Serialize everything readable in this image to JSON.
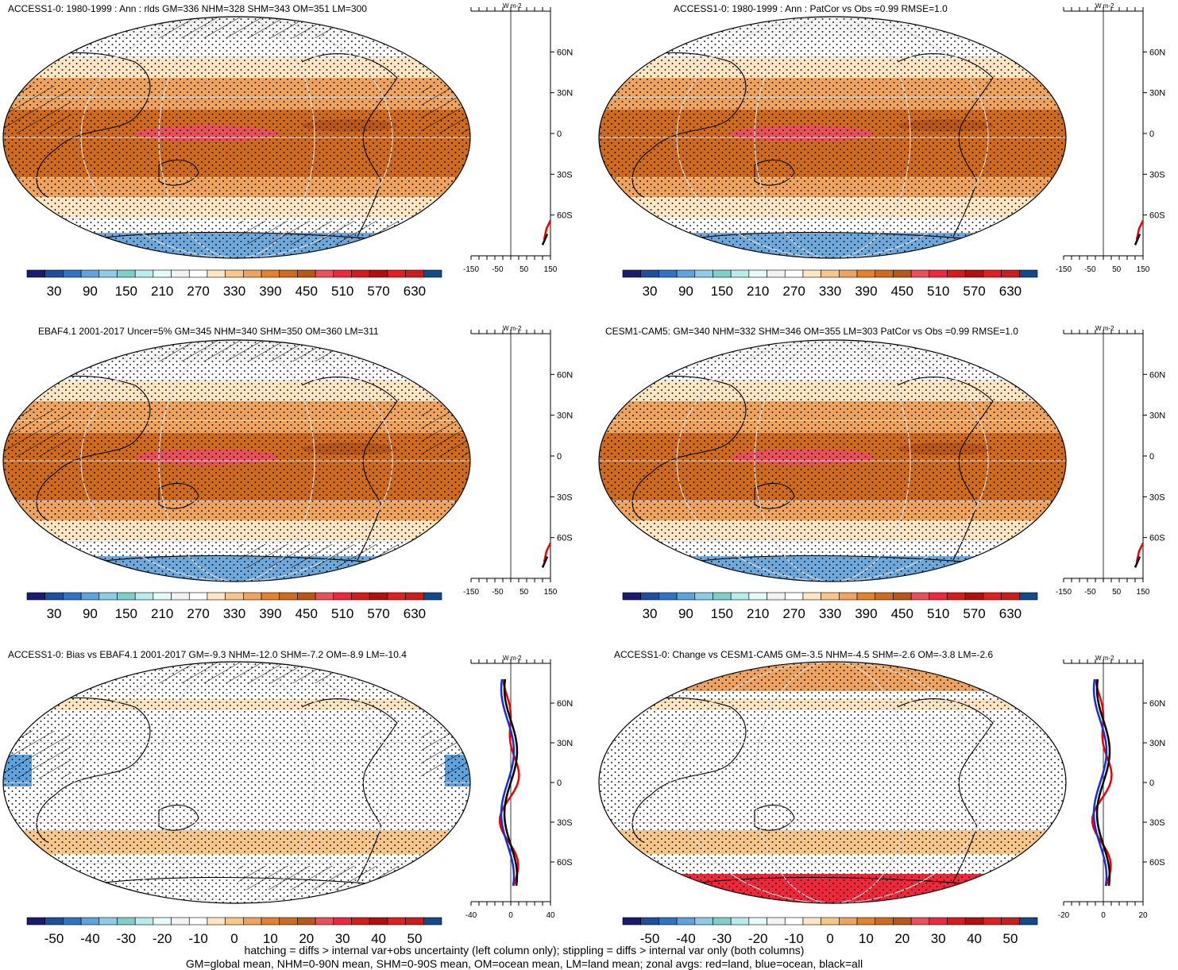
{
  "panels": [
    {
      "title": "ACCESS1-0: 1980-1999 : Ann : rlds GM=336 NHM=328 SHM=343 OM=351 LM=300",
      "map_type": "absolute",
      "hatched": true,
      "zonal": {
        "unit_label": "W m-2",
        "ticks": [
          "-150",
          "-50",
          "50",
          "150"
        ],
        "lats": [
          "60N",
          "30N",
          "0",
          "30S",
          "60S"
        ]
      },
      "colorbar_labels": [
        "30",
        "90",
        "150",
        "210",
        "270",
        "330",
        "390",
        "450",
        "510",
        "570",
        "630"
      ]
    },
    {
      "title": "ACCESS1-0: 1980-1999 : Ann : PatCor vs Obs =0.99 RMSE=1.0",
      "map_type": "absolute",
      "hatched": false,
      "zonal": {
        "unit_label": "W m-2",
        "ticks": [
          "-150",
          "-50",
          "50",
          "150"
        ],
        "lats": [
          "60N",
          "30N",
          "0",
          "30S",
          "60S"
        ]
      },
      "colorbar_labels": [
        "30",
        "90",
        "150",
        "210",
        "270",
        "330",
        "390",
        "450",
        "510",
        "570",
        "630"
      ]
    },
    {
      "title": "EBAF4.1 2001-2017 Uncer=5% GM=345 NHM=340 SHM=350 OM=360 LM=311",
      "map_type": "absolute",
      "hatched": true,
      "zonal": {
        "unit_label": "W m-2",
        "ticks": [
          "-150",
          "-50",
          "50",
          "150"
        ],
        "lats": [
          "60N",
          "30N",
          "0",
          "30S",
          "60S"
        ]
      },
      "colorbar_labels": [
        "30",
        "90",
        "150",
        "210",
        "270",
        "330",
        "390",
        "450",
        "510",
        "570",
        "630"
      ]
    },
    {
      "title": "CESM1-CAM5: GM=340 NHM=332 SHM=346 OM=355 LM=303 PatCor vs Obs =0.99 RMSE=1.0",
      "map_type": "absolute",
      "hatched": false,
      "zonal": {
        "unit_label": "W m-2",
        "ticks": [
          "-150",
          "-50",
          "50",
          "150"
        ],
        "lats": [
          "60N",
          "30N",
          "0",
          "30S",
          "60S"
        ]
      },
      "colorbar_labels": [
        "30",
        "90",
        "150",
        "210",
        "270",
        "330",
        "390",
        "450",
        "510",
        "570",
        "630"
      ]
    },
    {
      "title": "ACCESS1-0: Bias vs EBAF4.1 2001-2017 GM=-9.3 NHM=-12.0 SHM=-7.2 OM=-8.9 LM=-10.4",
      "map_type": "difference",
      "hatched": true,
      "zonal": {
        "unit_label": "W m-2",
        "ticks": [
          "-40",
          "0",
          "40"
        ],
        "lats": [
          "60N",
          "30N",
          "0",
          "30S",
          "60S"
        ]
      },
      "colorbar_labels": [
        "-50",
        "-40",
        "-30",
        "-20",
        "-10",
        "0",
        "10",
        "20",
        "30",
        "40",
        "50"
      ]
    },
    {
      "title": "ACCESS1-0: Change vs CESM1-CAM5 GM=-3.5 NHM=-4.5 SHM=-2.6 OM=-3.8 LM=-2.6",
      "map_type": "difference",
      "hatched": false,
      "zonal": {
        "unit_label": "W m-2",
        "ticks": [
          "-20",
          "0",
          "20"
        ],
        "lats": [
          "60N",
          "30N",
          "0",
          "30S",
          "60S"
        ]
      },
      "colorbar_labels": [
        "-50",
        "-40",
        "-30",
        "-20",
        "-10",
        "0",
        "10",
        "20",
        "30",
        "40",
        "50"
      ]
    }
  ],
  "palette": [
    "#1a1a6e",
    "#1f4e9c",
    "#2f73c4",
    "#5fa3de",
    "#8fcbe6",
    "#7fcfc8",
    "#b8ecec",
    "#e6fafa",
    "#f2f2f2",
    "#ffffff",
    "#fde6c4",
    "#f7c68b",
    "#eea45e",
    "#e2822e",
    "#cf6b1f",
    "#b8571a",
    "#e8505b",
    "#f0283c",
    "#d41c1c",
    "#b01010",
    "#e02020",
    "#c81e1e",
    "#114b8a"
  ],
  "footer": {
    "line1": "hatching = diffs > internal var+obs uncertainty (left column only); stippling = diffs > internal var only (both columns)",
    "line2": "GM=global mean, NHM=0-90N mean, SHM=0-90S mean, OM=ocean mean, LM=land mean; zonal avgs: red=land, blue=ocean, black=all"
  }
}
